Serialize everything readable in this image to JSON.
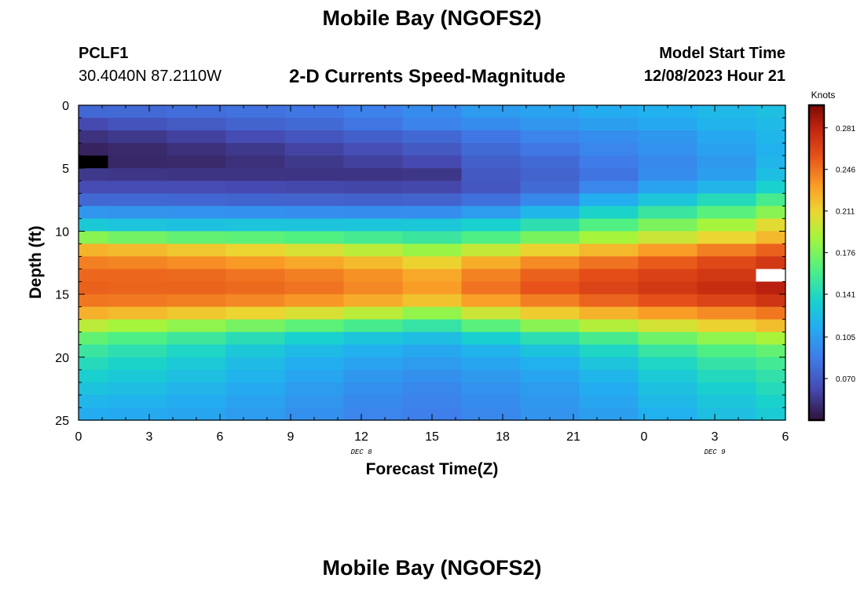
{
  "header": {
    "title": "Mobile Bay (NGOFS2)",
    "station": "PCLF1",
    "coords": "30.4040N  87.2110W",
    "variable": "2-D Currents Speed-Magnitude",
    "start_label": "Model Start Time",
    "start_value": "12/08/2023 Hour 21"
  },
  "footer": {
    "title": "Mobile Bay (NGOFS2)"
  },
  "chart_data": {
    "type": "heatmap",
    "title": "2-D Currents Speed-Magnitude",
    "xlabel": "Forecast Time(Z)",
    "ylabel": "Depth (ft)",
    "x_tick_labels": [
      "0",
      "3",
      "6",
      "9",
      "12",
      "15",
      "18",
      "21",
      "0",
      "3",
      "6"
    ],
    "date_labels": [
      {
        "text": "DEC 8",
        "at_hour": 12
      },
      {
        "text": "DEC 9",
        "at_hour": 27
      }
    ],
    "xlim": [
      0,
      30
    ],
    "ylim": [
      0,
      25
    ],
    "y_inverted": true,
    "y_tick_labels": [
      "0",
      "5",
      "10",
      "15",
      "20",
      "25"
    ],
    "colorbar": {
      "label": "Knots",
      "range": [
        0.035,
        0.3
      ],
      "ticks": [
        "0.281",
        "0.246",
        "0.211",
        "0.176",
        "0.141",
        "0.105",
        "0.070"
      ],
      "colormap": "turbo"
    },
    "x_columns_hours": [
      0,
      2.5,
      5,
      7.5,
      10,
      12.5,
      15,
      17.5,
      20,
      22.5,
      25,
      27.5,
      30
    ],
    "y_rows_ft": [
      0.5,
      1.5,
      2.5,
      3.5,
      4.5,
      5.5,
      6.5,
      7.5,
      8.5,
      9.5,
      10.5,
      11.5,
      12.5,
      13.5,
      14.5,
      15.5,
      16.5,
      17.5,
      18.5,
      19.5,
      20.5,
      21.5,
      22.5,
      23.5,
      24.5
    ],
    "values_knots": [
      [
        0.077,
        0.078,
        0.08,
        0.082,
        0.085,
        0.09,
        0.096,
        0.104,
        0.108,
        0.113,
        0.116,
        0.12,
        0.124
      ],
      [
        0.061,
        0.066,
        0.07,
        0.074,
        0.078,
        0.084,
        0.091,
        0.096,
        0.101,
        0.106,
        0.111,
        0.117,
        0.121
      ],
      [
        0.05,
        0.053,
        0.057,
        0.062,
        0.067,
        0.072,
        0.077,
        0.085,
        0.092,
        0.097,
        0.102,
        0.11,
        0.119
      ],
      [
        0.043,
        0.046,
        0.049,
        0.053,
        0.058,
        0.063,
        0.069,
        0.078,
        0.085,
        0.093,
        0.099,
        0.107,
        0.116
      ],
      [
        null,
        0.045,
        0.046,
        0.049,
        0.053,
        0.057,
        0.061,
        0.072,
        0.078,
        0.087,
        0.095,
        0.103,
        0.118
      ],
      [
        0.053,
        0.052,
        0.051,
        0.051,
        0.051,
        0.051,
        0.052,
        0.069,
        0.074,
        0.083,
        0.096,
        0.106,
        0.123
      ],
      [
        0.062,
        0.062,
        0.062,
        0.061,
        0.06,
        0.059,
        0.06,
        0.068,
        0.078,
        0.093,
        0.108,
        0.118,
        0.135
      ],
      [
        0.077,
        0.077,
        0.076,
        0.075,
        0.074,
        0.073,
        0.074,
        0.081,
        0.094,
        0.114,
        0.128,
        0.142,
        0.158
      ],
      [
        0.101,
        0.1,
        0.099,
        0.098,
        0.097,
        0.096,
        0.097,
        0.104,
        0.119,
        0.137,
        0.152,
        0.165,
        0.18
      ],
      [
        0.13,
        0.127,
        0.125,
        0.127,
        0.127,
        0.128,
        0.129,
        0.135,
        0.146,
        0.162,
        0.176,
        0.189,
        0.207
      ],
      [
        0.18,
        0.173,
        0.168,
        0.166,
        0.162,
        0.157,
        0.152,
        0.161,
        0.175,
        0.189,
        0.2,
        0.21,
        0.222
      ],
      [
        0.224,
        0.221,
        0.216,
        0.211,
        0.204,
        0.195,
        0.185,
        0.198,
        0.212,
        0.222,
        0.232,
        0.242,
        0.252
      ],
      [
        0.242,
        0.24,
        0.237,
        0.233,
        0.228,
        0.221,
        0.212,
        0.226,
        0.238,
        0.246,
        0.254,
        0.262,
        0.27
      ],
      [
        0.25,
        0.25,
        0.249,
        0.246,
        0.242,
        0.236,
        0.228,
        0.241,
        0.252,
        0.259,
        0.265,
        0.27,
        null
      ],
      [
        0.252,
        0.251,
        0.251,
        0.249,
        0.246,
        0.239,
        0.232,
        0.246,
        0.257,
        0.264,
        0.27,
        0.276,
        0.283
      ],
      [
        0.245,
        0.244,
        0.242,
        0.239,
        0.234,
        0.227,
        0.218,
        0.231,
        0.242,
        0.251,
        0.258,
        0.264,
        0.272
      ],
      [
        0.225,
        0.221,
        0.216,
        0.211,
        0.204,
        0.195,
        0.183,
        0.2,
        0.214,
        0.224,
        0.232,
        0.238,
        0.245
      ],
      [
        0.195,
        0.189,
        0.182,
        0.174,
        0.166,
        0.158,
        0.15,
        0.165,
        0.18,
        0.193,
        0.203,
        0.212,
        0.22
      ],
      [
        0.168,
        0.161,
        0.153,
        0.144,
        0.135,
        0.128,
        0.123,
        0.134,
        0.146,
        0.158,
        0.172,
        0.182,
        0.19
      ],
      [
        0.152,
        0.146,
        0.138,
        0.129,
        0.121,
        0.115,
        0.111,
        0.117,
        0.126,
        0.138,
        0.151,
        0.161,
        0.168
      ],
      [
        0.142,
        0.137,
        0.13,
        0.122,
        0.114,
        0.108,
        0.104,
        0.109,
        0.116,
        0.127,
        0.139,
        0.149,
        0.156
      ],
      [
        0.134,
        0.13,
        0.124,
        0.117,
        0.109,
        0.102,
        0.098,
        0.103,
        0.109,
        0.119,
        0.131,
        0.141,
        0.148
      ],
      [
        0.126,
        0.123,
        0.118,
        0.112,
        0.105,
        0.098,
        0.094,
        0.099,
        0.105,
        0.113,
        0.125,
        0.134,
        0.142
      ],
      [
        0.119,
        0.117,
        0.113,
        0.108,
        0.101,
        0.095,
        0.091,
        0.096,
        0.102,
        0.109,
        0.12,
        0.128,
        0.136
      ],
      [
        0.113,
        0.112,
        0.109,
        0.104,
        0.098,
        0.092,
        0.089,
        0.094,
        0.1,
        0.106,
        0.116,
        0.124,
        0.131
      ]
    ],
    "null_cell_note_colors": {
      "low_missing": "#000000",
      "high_missing": "#ffffff"
    },
    "grid": false
  }
}
